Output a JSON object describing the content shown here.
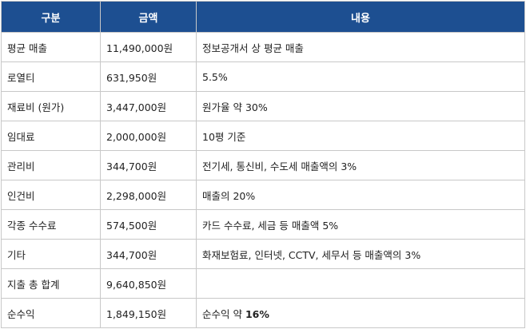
{
  "table": {
    "header": [
      "구분",
      "금액",
      "내용"
    ],
    "rows": [
      [
        "평균 매출",
        "11,490,000원",
        "정보공개서 상 평균 매출"
      ],
      [
        "로열티",
        "631,950원",
        "5.5%"
      ],
      [
        "재료비 (원가)",
        "3,447,000원",
        "원가율 약 30%"
      ],
      [
        "임대료",
        "2,000,000원",
        "10평 기준"
      ],
      [
        "관리비",
        "344,700원",
        "전기세, 통신비, 수도세 매출액의 3%"
      ],
      [
        "인건비",
        "2,298,000원",
        "매출의 20%"
      ],
      [
        "각종 수수료",
        "574,500원",
        "카드 수수료, 세금 등 매출액 5%"
      ],
      [
        "기타",
        "344,700원",
        "화재보험료, 인터넷, CCTV, 세무서 등 매출액의 3%"
      ],
      [
        "지출 총 합계",
        "9,640,850원",
        null
      ],
      [
        "순수익",
        "1,849,150원",
        [
          "순수익 약",
          "16%"
        ]
      ]
    ]
  }
}
